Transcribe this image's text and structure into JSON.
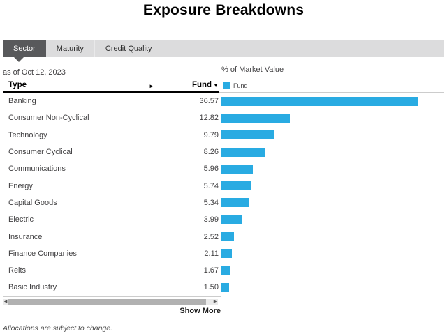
{
  "title": "Exposure Breakdowns",
  "tabs": [
    {
      "label": "Sector",
      "active": true
    },
    {
      "label": "Maturity",
      "active": false
    },
    {
      "label": "Credit Quality",
      "active": false
    }
  ],
  "as_of": "as of Oct 12, 2023",
  "chart_header": "% of Market Value",
  "table": {
    "type_header": "Type",
    "fund_header": "Fund",
    "sort_indicator": "▼",
    "expand_arrow": "►"
  },
  "legend": {
    "label": "Fund",
    "color": "#29ABE2"
  },
  "chart_data": {
    "type": "bar",
    "orientation": "horizontal",
    "title": "% of Market Value",
    "series_name": "Fund",
    "bar_color": "#29ABE2",
    "xlim": [
      0,
      36.57
    ],
    "grid": false,
    "legend_position": "top",
    "categories": [
      "Banking",
      "Consumer Non-Cyclical",
      "Technology",
      "Consumer Cyclical",
      "Communications",
      "Energy",
      "Capital Goods",
      "Electric",
      "Insurance",
      "Finance Companies",
      "Reits",
      "Basic Industry"
    ],
    "values": [
      36.57,
      12.82,
      9.79,
      8.26,
      5.96,
      5.74,
      5.34,
      3.99,
      2.52,
      2.11,
      1.67,
      1.5
    ]
  },
  "scrollbar": {
    "left_arrow": "◀",
    "right_arrow": "▶"
  },
  "show_more": "Show More",
  "footnote": "Allocations are subject to change.",
  "colors": {
    "accent": "#29ABE2",
    "active_tab": "#58595B",
    "tab_bar": "#DCDCDD"
  }
}
